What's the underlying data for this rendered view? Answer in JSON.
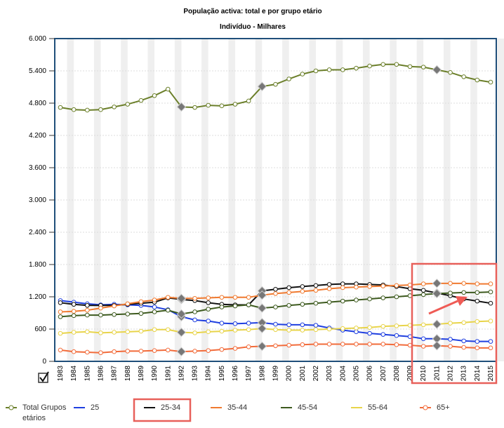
{
  "chart_data": {
    "type": "line",
    "title": "População activa: total e por grupo etário",
    "subtitle": "Indivíduo - Milhares",
    "categories": [
      "1983",
      "1984",
      "1985",
      "1986",
      "1987",
      "1988",
      "1989",
      "1990",
      "1991",
      "1992",
      "1993",
      "1994",
      "1995",
      "1996",
      "1997",
      "1998",
      "1999",
      "2000",
      "2001",
      "2002",
      "2003",
      "2004",
      "2005",
      "2006",
      "2007",
      "2008",
      "2009",
      "2010",
      "2011",
      "2012",
      "2013",
      "2014",
      "2015"
    ],
    "ylim": [
      0,
      6000
    ],
    "yticks": [
      {
        "value": 0,
        "label": "0"
      },
      {
        "value": 600,
        "label": "600"
      },
      {
        "value": 1200,
        "label": "1.200"
      },
      {
        "value": 1800,
        "label": "1.800"
      },
      {
        "value": 2400,
        "label": "2.400"
      },
      {
        "value": 3000,
        "label": "3.000"
      },
      {
        "value": 3600,
        "label": "3.600"
      },
      {
        "value": 4200,
        "label": "4.200"
      },
      {
        "value": 4800,
        "label": "4.800"
      },
      {
        "value": 5400,
        "label": "5.400"
      },
      {
        "value": 6000,
        "label": "6.000"
      }
    ],
    "grid": true,
    "series": [
      {
        "name": "Total Grupos etários",
        "color": "#6b7f2a",
        "values": [
          4720,
          4680,
          4670,
          4680,
          4730,
          4780,
          4850,
          4940,
          5060,
          4730,
          4720,
          4760,
          4750,
          4780,
          4840,
          5110,
          5150,
          5250,
          5340,
          5400,
          5420,
          5420,
          5450,
          5490,
          5520,
          5520,
          5480,
          5470,
          5420,
          5370,
          5290,
          5230,
          5190
        ]
      },
      {
        "name": "25",
        "color": "#1f3fe0",
        "values": [
          1130,
          1100,
          1070,
          1050,
          1060,
          1050,
          1040,
          1010,
          960,
          830,
          770,
          750,
          710,
          700,
          710,
          720,
          690,
          680,
          680,
          670,
          620,
          580,
          550,
          520,
          500,
          480,
          460,
          420,
          420,
          410,
          380,
          370,
          370
        ]
      },
      {
        "name": "25-34",
        "color": "#111111",
        "values": [
          1090,
          1060,
          1040,
          1040,
          1040,
          1060,
          1080,
          1100,
          1180,
          1150,
          1130,
          1090,
          1060,
          1050,
          1050,
          1310,
          1340,
          1370,
          1390,
          1410,
          1430,
          1440,
          1440,
          1430,
          1420,
          1390,
          1350,
          1320,
          1270,
          1220,
          1160,
          1120,
          1080
        ]
      },
      {
        "name": "35-44",
        "color": "#f07a30",
        "values": [
          920,
          930,
          950,
          990,
          1030,
          1070,
          1110,
          1140,
          1190,
          1170,
          1170,
          1180,
          1190,
          1190,
          1190,
          1230,
          1260,
          1280,
          1300,
          1320,
          1350,
          1370,
          1380,
          1390,
          1400,
          1410,
          1420,
          1440,
          1450,
          1450,
          1450,
          1440,
          1440
        ]
      },
      {
        "name": "45-54",
        "color": "#3d5a1e",
        "values": [
          830,
          850,
          860,
          860,
          870,
          880,
          890,
          920,
          950,
          880,
          920,
          970,
          1010,
          1030,
          1050,
          990,
          1010,
          1040,
          1060,
          1080,
          1100,
          1120,
          1140,
          1160,
          1180,
          1200,
          1220,
          1240,
          1260,
          1270,
          1280,
          1280,
          1290
        ]
      },
      {
        "name": "55-64",
        "color": "#e8d44a",
        "values": [
          520,
          540,
          550,
          530,
          540,
          550,
          560,
          590,
          590,
          540,
          530,
          550,
          560,
          580,
          590,
          610,
          590,
          580,
          580,
          590,
          600,
          610,
          620,
          630,
          650,
          660,
          670,
          680,
          690,
          710,
          720,
          740,
          750
        ]
      },
      {
        "name": "65+",
        "color": "#f26b3a",
        "values": [
          210,
          180,
          170,
          160,
          180,
          190,
          190,
          200,
          210,
          180,
          190,
          200,
          220,
          240,
          270,
          280,
          290,
          300,
          310,
          320,
          320,
          320,
          320,
          320,
          320,
          310,
          300,
          280,
          290,
          280,
          260,
          250,
          250
        ]
      }
    ]
  }
}
